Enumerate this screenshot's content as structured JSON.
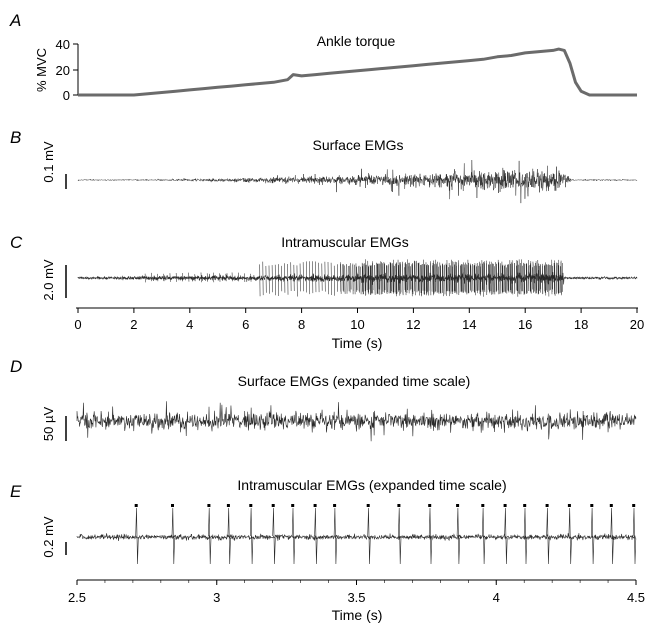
{
  "chart_data": [
    {
      "panel": "A",
      "type": "line",
      "title": "Ankle torque",
      "ylabel": "% MVC",
      "yticks": [
        "0",
        "20",
        "40"
      ],
      "ylim": [
        0,
        40
      ],
      "xlim": [
        0,
        20
      ],
      "x": [
        0,
        2,
        2.5,
        3,
        3.5,
        4,
        4.5,
        5,
        5.5,
        6,
        6.5,
        7,
        7.5,
        7.7,
        8,
        8.5,
        9,
        9.5,
        10,
        10.5,
        11,
        11.5,
        12,
        12.5,
        13,
        13.5,
        14,
        14.5,
        15,
        15.5,
        16,
        16.5,
        17,
        17.2,
        17.4,
        17.6,
        17.8,
        18.0,
        18.3,
        20
      ],
      "values": [
        0,
        0,
        1,
        2,
        3,
        4,
        5,
        6,
        7,
        8,
        9,
        10,
        12,
        16,
        15,
        16,
        17,
        18,
        19,
        20,
        21,
        22,
        23,
        24,
        25,
        26,
        27,
        28,
        30,
        31,
        33,
        34,
        35,
        36,
        35,
        25,
        10,
        3,
        0,
        0
      ]
    },
    {
      "panel": "B",
      "type": "line",
      "title": "Surface EMGs",
      "scalebar_label": "0.1 mV",
      "xlim": [
        0,
        20
      ]
    },
    {
      "panel": "C",
      "type": "line",
      "title": "Intramuscular EMGs",
      "scalebar_label": "2.0 mV",
      "xlim": [
        0,
        20
      ],
      "xlabel": "Time (s)",
      "xticks": [
        "0",
        "2",
        "4",
        "6",
        "8",
        "10",
        "12",
        "14",
        "16",
        "18",
        "20"
      ]
    },
    {
      "panel": "D",
      "type": "line",
      "title": "Surface EMGs (expanded time scale)",
      "scalebar_label": "50 µV",
      "xlim": [
        2.5,
        4.5
      ]
    },
    {
      "panel": "E",
      "type": "line",
      "title": "Intramuscular EMGs (expanded time scale)",
      "scalebar_label": "0.2 mV",
      "xlim": [
        2.5,
        4.5
      ],
      "xlabel": "Time (s)",
      "xticks": [
        "2.5",
        "3",
        "3.5",
        "4",
        "4.5"
      ],
      "spike_times": [
        2.71,
        2.84,
        2.97,
        3.04,
        3.12,
        3.2,
        3.27,
        3.35,
        3.42,
        3.54,
        3.65,
        3.76,
        3.86,
        3.95,
        4.03,
        4.1,
        4.18,
        4.26,
        4.34,
        4.41,
        4.49
      ]
    }
  ]
}
